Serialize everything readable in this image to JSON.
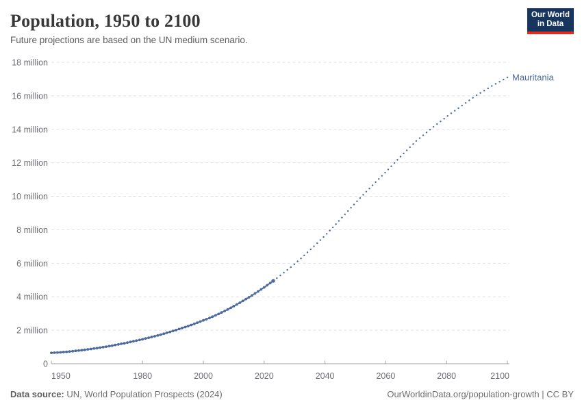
{
  "header": {
    "title": "Population, 1950 to 2100",
    "subtitle": "Future projections are based on the UN medium scenario."
  },
  "logo": {
    "line1": "Our World",
    "line2": "in Data",
    "bg_color": "#18365d",
    "accent_color": "#dc2d1d"
  },
  "footer": {
    "source_label": "Data source:",
    "source_text": " UN, World Population Prospects (2024)",
    "right_text": "OurWorldinData.org/population-growth | CC BY"
  },
  "chart_data": {
    "type": "line",
    "title": "Population, 1950 to 2100",
    "subtitle": "Future projections are based on the UN medium scenario.",
    "entity": "Mauritania",
    "end_label": "Mauritania",
    "line_color": "#4C6A9C",
    "axis_text_color": "#6b6d72",
    "grid_color": "#e0e0e0",
    "axis_line_color": "#a3a3a3",
    "grid": "horizontal-dashed",
    "legend_position": "end-of-line-label",
    "xlabel": "",
    "ylabel": "",
    "values_unit": "millions of people",
    "y_tick_suffix": " million",
    "xlim": [
      1950,
      2100
    ],
    "ylim_millions": [
      0,
      18
    ],
    "x_ticks": [
      1950,
      1980,
      2000,
      2020,
      2040,
      2060,
      2080,
      2100
    ],
    "y_ticks_millions": [
      0,
      2,
      4,
      6,
      8,
      10,
      12,
      14,
      16,
      18
    ],
    "series": [
      {
        "name": "Mauritania (historical estimates)",
        "style": "solid-with-year-markers",
        "points": [
          [
            1950,
            0.65
          ],
          [
            1951,
            0.66
          ],
          [
            1952,
            0.67
          ],
          [
            1953,
            0.68
          ],
          [
            1954,
            0.7
          ],
          [
            1955,
            0.71
          ],
          [
            1956,
            0.73
          ],
          [
            1957,
            0.75
          ],
          [
            1958,
            0.77
          ],
          [
            1959,
            0.79
          ],
          [
            1960,
            0.81
          ],
          [
            1961,
            0.83
          ],
          [
            1962,
            0.86
          ],
          [
            1963,
            0.88
          ],
          [
            1964,
            0.91
          ],
          [
            1965,
            0.93
          ],
          [
            1966,
            0.96
          ],
          [
            1967,
            0.99
          ],
          [
            1968,
            1.02
          ],
          [
            1969,
            1.05
          ],
          [
            1970,
            1.08
          ],
          [
            1971,
            1.12
          ],
          [
            1972,
            1.15
          ],
          [
            1973,
            1.19
          ],
          [
            1974,
            1.22
          ],
          [
            1975,
            1.26
          ],
          [
            1976,
            1.3
          ],
          [
            1977,
            1.34
          ],
          [
            1978,
            1.38
          ],
          [
            1979,
            1.42
          ],
          [
            1980,
            1.46
          ],
          [
            1981,
            1.51
          ],
          [
            1982,
            1.55
          ],
          [
            1983,
            1.6
          ],
          [
            1984,
            1.64
          ],
          [
            1985,
            1.69
          ],
          [
            1986,
            1.74
          ],
          [
            1987,
            1.79
          ],
          [
            1988,
            1.85
          ],
          [
            1989,
            1.9
          ],
          [
            1990,
            1.96
          ],
          [
            1991,
            2.01
          ],
          [
            1992,
            2.07
          ],
          [
            1993,
            2.13
          ],
          [
            1994,
            2.19
          ],
          [
            1995,
            2.25
          ],
          [
            1996,
            2.31
          ],
          [
            1997,
            2.38
          ],
          [
            1998,
            2.45
          ],
          [
            1999,
            2.52
          ],
          [
            2000,
            2.59
          ],
          [
            2001,
            2.66
          ],
          [
            2002,
            2.73
          ],
          [
            2003,
            2.81
          ],
          [
            2004,
            2.89
          ],
          [
            2005,
            2.97
          ],
          [
            2006,
            3.06
          ],
          [
            2007,
            3.15
          ],
          [
            2008,
            3.24
          ],
          [
            2009,
            3.34
          ],
          [
            2010,
            3.44
          ],
          [
            2011,
            3.54
          ],
          [
            2012,
            3.64
          ],
          [
            2013,
            3.75
          ],
          [
            2014,
            3.86
          ],
          [
            2015,
            3.97
          ],
          [
            2016,
            4.08
          ],
          [
            2017,
            4.2
          ],
          [
            2018,
            4.32
          ],
          [
            2019,
            4.44
          ],
          [
            2020,
            4.56
          ],
          [
            2021,
            4.69
          ],
          [
            2022,
            4.82
          ],
          [
            2023,
            4.95
          ]
        ]
      },
      {
        "name": "Mauritania (UN medium projection)",
        "style": "dotted",
        "points": [
          [
            2023,
            4.95
          ],
          [
            2024,
            5.09
          ],
          [
            2025,
            5.23
          ],
          [
            2026,
            5.37
          ],
          [
            2027,
            5.51
          ],
          [
            2028,
            5.66
          ],
          [
            2029,
            5.8
          ],
          [
            2030,
            5.95
          ],
          [
            2031,
            6.11
          ],
          [
            2032,
            6.27
          ],
          [
            2033,
            6.44
          ],
          [
            2034,
            6.61
          ],
          [
            2035,
            6.78
          ],
          [
            2036,
            6.95
          ],
          [
            2037,
            7.12
          ],
          [
            2038,
            7.3
          ],
          [
            2039,
            7.47
          ],
          [
            2040,
            7.65
          ],
          [
            2041,
            7.84
          ],
          [
            2042,
            8.03
          ],
          [
            2043,
            8.22
          ],
          [
            2044,
            8.42
          ],
          [
            2045,
            8.61
          ],
          [
            2046,
            8.81
          ],
          [
            2047,
            9.01
          ],
          [
            2048,
            9.21
          ],
          [
            2049,
            9.4
          ],
          [
            2050,
            9.6
          ],
          [
            2051,
            9.79
          ],
          [
            2052,
            9.98
          ],
          [
            2053,
            10.17
          ],
          [
            2054,
            10.35
          ],
          [
            2055,
            10.54
          ],
          [
            2056,
            10.72
          ],
          [
            2057,
            10.91
          ],
          [
            2058,
            11.09
          ],
          [
            2059,
            11.27
          ],
          [
            2060,
            11.45
          ],
          [
            2061,
            11.64
          ],
          [
            2062,
            11.83
          ],
          [
            2063,
            12.02
          ],
          [
            2064,
            12.21
          ],
          [
            2065,
            12.4
          ],
          [
            2066,
            12.58
          ],
          [
            2067,
            12.76
          ],
          [
            2068,
            12.94
          ],
          [
            2069,
            13.12
          ],
          [
            2070,
            13.3
          ],
          [
            2071,
            13.45
          ],
          [
            2072,
            13.6
          ],
          [
            2073,
            13.75
          ],
          [
            2074,
            13.9
          ],
          [
            2075,
            14.05
          ],
          [
            2076,
            14.19
          ],
          [
            2077,
            14.33
          ],
          [
            2078,
            14.47
          ],
          [
            2079,
            14.61
          ],
          [
            2080,
            14.75
          ],
          [
            2081,
            14.89
          ],
          [
            2082,
            15.02
          ],
          [
            2083,
            15.15
          ],
          [
            2084,
            15.28
          ],
          [
            2085,
            15.41
          ],
          [
            2086,
            15.54
          ],
          [
            2087,
            15.67
          ],
          [
            2088,
            15.8
          ],
          [
            2089,
            15.93
          ],
          [
            2090,
            16.05
          ],
          [
            2091,
            16.16
          ],
          [
            2092,
            16.27
          ],
          [
            2093,
            16.38
          ],
          [
            2094,
            16.49
          ],
          [
            2095,
            16.6
          ],
          [
            2096,
            16.7
          ],
          [
            2097,
            16.8
          ],
          [
            2098,
            16.9
          ],
          [
            2099,
            17.0
          ],
          [
            2100,
            17.1
          ]
        ]
      }
    ]
  }
}
